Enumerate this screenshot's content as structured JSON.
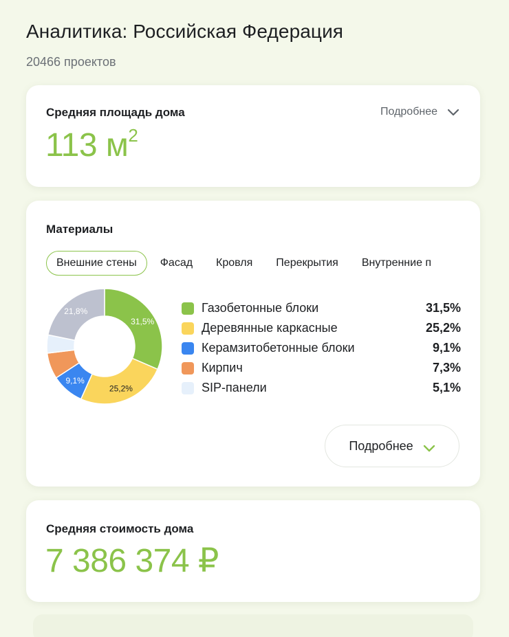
{
  "header": {
    "title": "Аналитика: Российская Федерация",
    "subtitle": "20466 проектов"
  },
  "area_card": {
    "title": "Средняя площадь дома",
    "value": "113 м",
    "value_sup": "2",
    "more_label": "Подробнее"
  },
  "materials_card": {
    "title": "Материалы",
    "tabs": [
      {
        "label": "Внешние стены",
        "active": true
      },
      {
        "label": "Фасад",
        "active": false
      },
      {
        "label": "Кровля",
        "active": false
      },
      {
        "label": "Перекрытия",
        "active": false
      },
      {
        "label": "Внутренние п",
        "active": false
      }
    ],
    "legend": [
      {
        "label": "Газобетонные блоки",
        "value": "31,5%",
        "color": "#8bc34a"
      },
      {
        "label": "Деревянные каркасные",
        "value": "25,2%",
        "color": "#fad55c"
      },
      {
        "label": "Керамзитобетонные блоки",
        "value": "9,1%",
        "color": "#3a86f0"
      },
      {
        "label": "Кирпич",
        "value": "7,3%",
        "color": "#f0975a"
      },
      {
        "label": "SIP-панели",
        "value": "5,1%",
        "color": "#e6f0fb"
      }
    ],
    "more_label": "Подробнее"
  },
  "chart_data": {
    "type": "pie",
    "categories": [
      "Газобетонные блоки",
      "Деревянные каркасные",
      "Керамзитобетонные блоки",
      "Кирпич",
      "SIP-панели",
      ""
    ],
    "values": [
      31.5,
      25.2,
      9.1,
      7.3,
      5.1,
      21.8
    ],
    "colors": [
      "#8bc34a",
      "#fad55c",
      "#3a86f0",
      "#f0975a",
      "#e6f0fb",
      "#bdc1cf"
    ],
    "slice_labels": [
      "31,5%",
      "25,2%",
      "9,1%",
      "",
      "",
      "21,8%"
    ],
    "label_colors": [
      "#ffffff",
      "#1d1f22",
      "#ffffff",
      "#ffffff",
      "#ffffff",
      "#ffffff"
    ],
    "donut": true
  },
  "cost_card": {
    "title": "Средняя стоимость дома",
    "value": "7 386 374 ₽"
  }
}
